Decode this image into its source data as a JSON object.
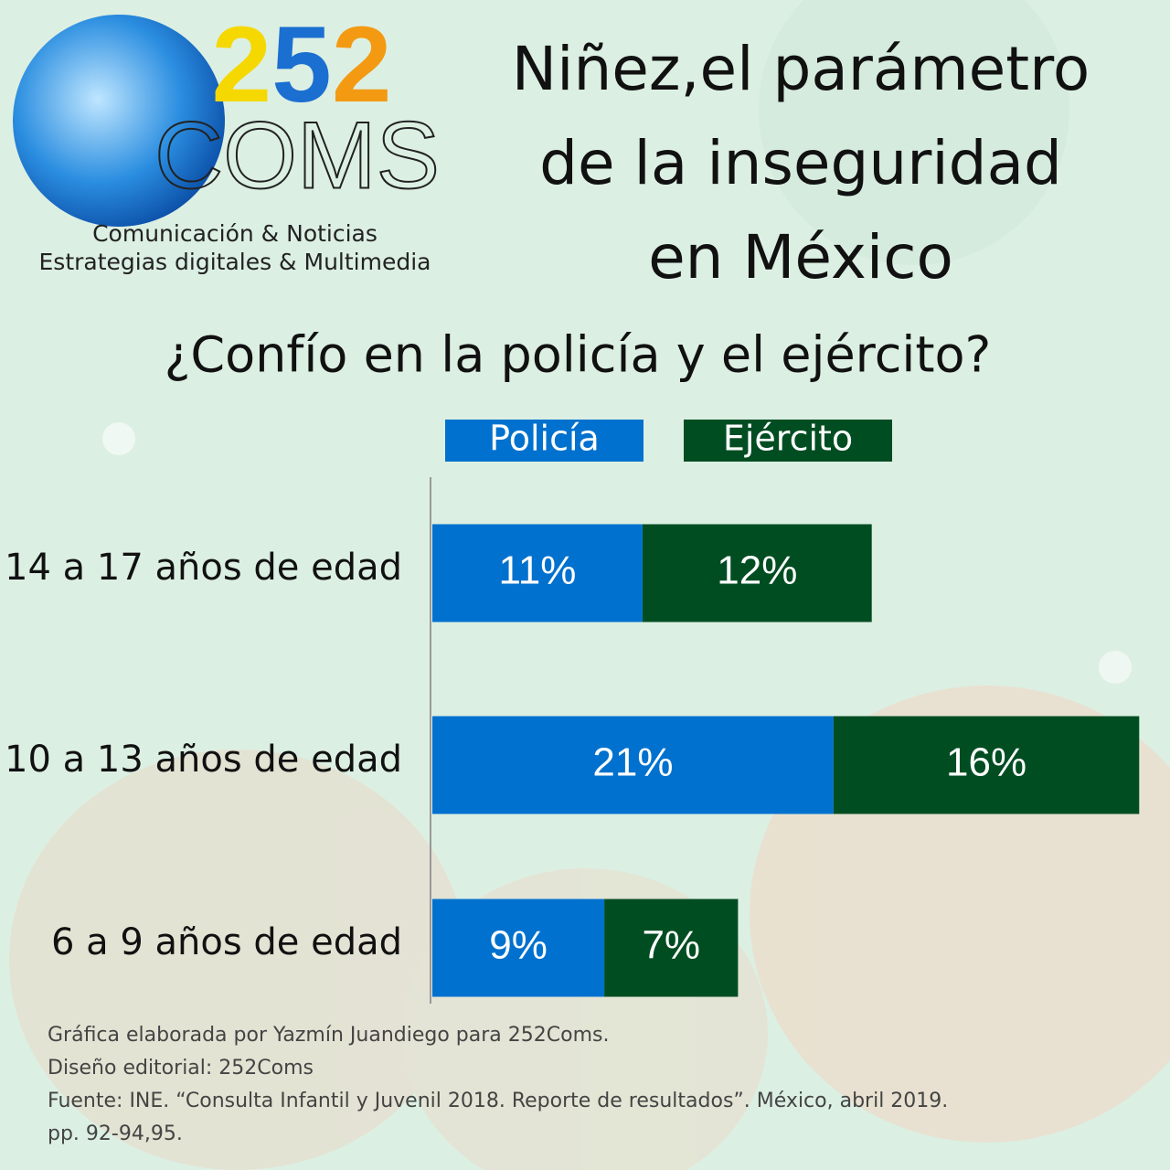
{
  "logo": {
    "number": [
      "2",
      "5",
      "2"
    ],
    "number_colors": [
      "#f5d800",
      "#1b6fd1",
      "#f39a12"
    ],
    "name": "COMS",
    "taglines": [
      "Comunicación & Noticias",
      "Estrategias digitales & Multimedia"
    ]
  },
  "chart_data": {
    "type": "bar",
    "orientation": "horizontal",
    "stacked": true,
    "title": [
      "Niñez,el parámetro",
      "de la inseguridad",
      "en México"
    ],
    "subtitle": "¿Confío en la policía y el ejército?",
    "categories": [
      "14 a 17 años de edad",
      "10 a 13 años de edad",
      "6 a 9 años de edad"
    ],
    "series": [
      {
        "name": "Policía",
        "color": "#0071ce",
        "values": [
          11,
          21,
          9
        ],
        "value_labels": [
          "11%",
          "21%",
          "9%"
        ]
      },
      {
        "name": "Ejército",
        "color": "#014d22",
        "values": [
          12,
          16,
          7
        ],
        "value_labels": [
          "12%",
          "16%",
          "7%"
        ]
      }
    ],
    "notes": [
      "Gráfica elaborada por Yazmín Juandiego para 252Coms.",
      "Diseño editorial: 252Coms",
      "Fuente: INE. “Consulta Infantil y Juvenil 2018. Reporte de resultados”. México, abril 2019.",
      "pp. 92-94,95."
    ]
  }
}
